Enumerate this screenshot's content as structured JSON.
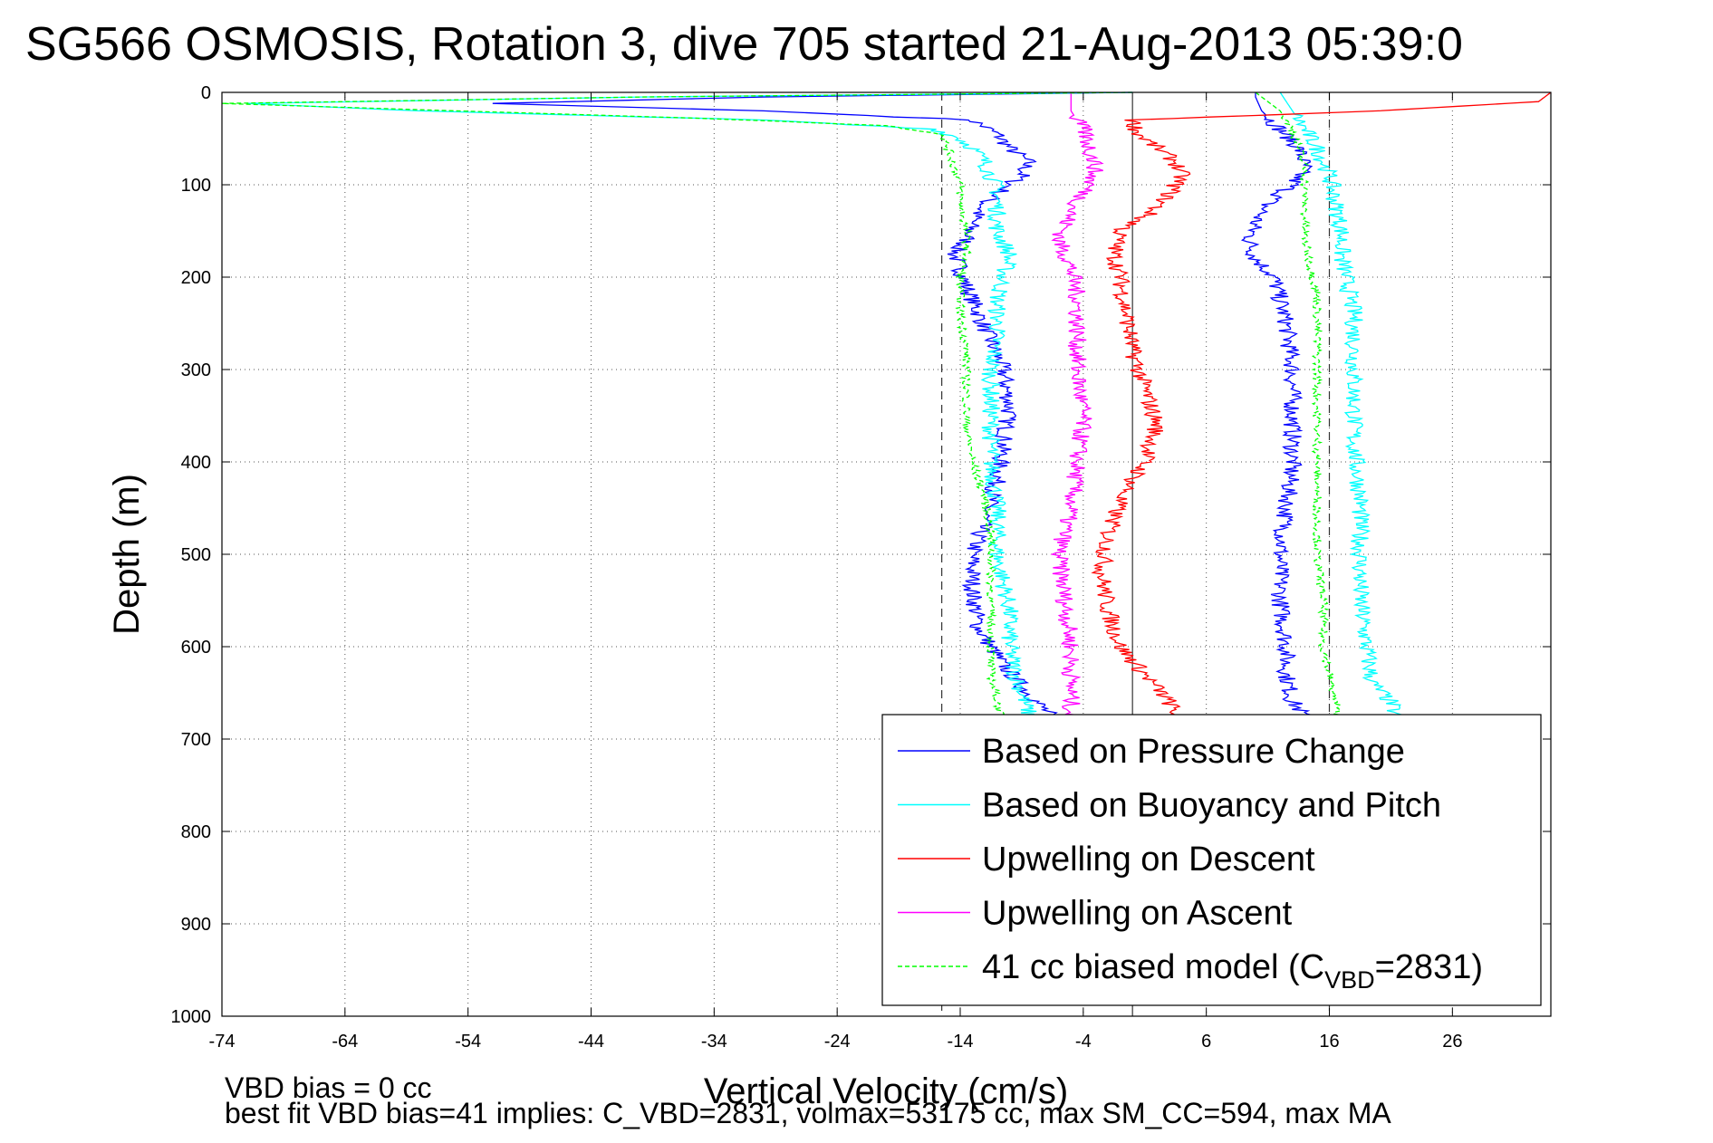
{
  "chart_data": {
    "type": "line",
    "title": "SG566 OSMOSIS, Rotation 3, dive 705 started 21-Aug-2013 05:39:0",
    "xlabel": "Vertical Velocity (cm/s)",
    "ylabel": "Depth (m)",
    "xlim": [
      -74,
      34
    ],
    "ylim": [
      0,
      1000
    ],
    "y_reversed": true,
    "grid": true,
    "xticks": [
      -74,
      -64,
      -54,
      -44,
      -34,
      -24,
      -14,
      -4,
      6,
      16,
      26
    ],
    "yticks": [
      0,
      100,
      200,
      300,
      400,
      500,
      600,
      700,
      800,
      900,
      1000
    ],
    "reference_lines": [
      {
        "x": -15.5,
        "style": "dashed"
      },
      {
        "x": 0,
        "style": "solid"
      },
      {
        "x": 16,
        "style": "dashed"
      }
    ],
    "legend_position": "bottom-right",
    "series": [
      {
        "name": "Based on Pressure Change",
        "color": "#0000ff",
        "segments": [
          {
            "depth": [
              0,
              5,
              12,
              20,
              30,
              45,
              60,
              75,
              90,
              105,
              120,
              140,
              160,
              175,
              190,
              210,
              240,
              270,
              300,
              340,
              380,
              420,
              460,
              500,
              540,
              580,
              620,
              650,
              670,
              690,
              698
            ],
            "x": [
              0,
              -30,
              -52,
              -30,
              -13,
              -11,
              -10,
              -8.5,
              -9,
              -10.5,
              -12,
              -13,
              -13.5,
              -14.5,
              -14,
              -13.5,
              -12.5,
              -11.5,
              -10.5,
              -10,
              -10.5,
              -11,
              -12,
              -13,
              -13,
              -12.5,
              -10.5,
              -8.5,
              -7,
              -5.5,
              -5
            ]
          },
          {
            "depth": [
              0,
              5,
              20,
              40,
              60,
              80,
              100,
              120,
              140,
              160,
              180,
              200,
              250,
              300,
              350,
              400,
              450,
              500,
              550,
              600,
              630,
              660,
              690,
              698
            ],
            "x": [
              10,
              10,
              10.5,
              12,
              13.5,
              14,
              13,
              11,
              10,
              9.5,
              10,
              11.5,
              12.5,
              13,
              13,
              13,
              12.5,
              12,
              12,
              12.5,
              12.5,
              13,
              15,
              16
            ]
          }
        ]
      },
      {
        "name": "Based on Buoyancy and Pitch",
        "color": "#00ffff",
        "segments": [
          {
            "depth": [
              0,
              5,
              12,
              20,
              30,
              40,
              50,
              60,
              75,
              90,
              105,
              120,
              150,
              175,
              200,
              225,
              260,
              300,
              350,
              400,
              450,
              500,
              530,
              560,
              600,
              630,
              650,
              670,
              690,
              698
            ],
            "x": [
              0,
              -40,
              -72,
              -58,
              -30,
              -16,
              -14,
              -13,
              -12,
              -11.5,
              -11,
              -11,
              -11,
              -10,
              -10.5,
              -11,
              -11,
              -11.5,
              -11.5,
              -11.5,
              -11,
              -11,
              -10.5,
              -10,
              -10,
              -9.5,
              -9,
              -8.5,
              -8,
              -7.5
            ]
          },
          {
            "depth": [
              0,
              10,
              30,
              60,
              90,
              120,
              150,
              180,
              210,
              240,
              280,
              320,
              380,
              440,
              500,
              550,
              600,
              640,
              660,
              680,
              698
            ],
            "x": [
              12,
              12.5,
              13.5,
              15,
              16,
              16.5,
              17,
              17,
              17.5,
              18,
              18,
              18,
              18,
              18.5,
              18.5,
              18.5,
              19,
              19.5,
              21,
              21.5,
              22
            ]
          }
        ]
      },
      {
        "name": "Upwelling on Descent",
        "color": "#ff0000",
        "segments": [
          {
            "depth": [
              0,
              10,
              20,
              30,
              45,
              60,
              75,
              90,
              110,
              130,
              150,
              175,
              200,
              240,
              280,
              320,
              360,
              400,
              440,
              480,
              520,
              560,
              600,
              630,
              660,
              690,
              698
            ],
            "x": [
              34,
              33,
              20,
              0,
              0.5,
              2,
              3.5,
              4,
              3,
              1.5,
              -1,
              -1.5,
              -1,
              -0.5,
              0,
              1,
              2,
              1,
              -1,
              -2,
              -2.5,
              -2,
              -1,
              1,
              3,
              4,
              4
            ]
          }
        ]
      },
      {
        "name": "Upwelling on Ascent",
        "color": "#ff00ff",
        "segments": [
          {
            "depth": [
              0,
              20,
              40,
              60,
              80,
              100,
              130,
              160,
              190,
              220,
              260,
              300,
              350,
              400,
              450,
              500,
              550,
              600,
              630,
              660,
              690,
              698
            ],
            "x": [
              -5,
              -5,
              -4,
              -3.5,
              -3,
              -3.5,
              -5,
              -6,
              -5,
              -4.5,
              -4.5,
              -4.5,
              -4,
              -4.5,
              -5,
              -6,
              -5.5,
              -5,
              -5,
              -5,
              -5,
              -5
            ]
          }
        ]
      },
      {
        "name": "41 cc biased model (C_VBD=2831)",
        "color": "#00ff00",
        "dashed": true,
        "segments": [
          {
            "depth": [
              0,
              5,
              12,
              20,
              28,
              36,
              45,
              60,
              80,
              100,
              120,
              150,
              175,
              200,
              240,
              280,
              320,
              360,
              400,
              440,
              480,
              520,
              560,
              600,
              630,
              660,
              690,
              698
            ],
            "x": [
              0,
              -40,
              -74,
              -55,
              -35,
              -20,
              -15.5,
              -15,
              -14.5,
              -14,
              -14,
              -13.5,
              -13.5,
              -14,
              -14,
              -13.5,
              -13.5,
              -13.5,
              -13,
              -12,
              -11.5,
              -11.5,
              -11.5,
              -11.5,
              -11.5,
              -11,
              -10.5,
              -10
            ]
          },
          {
            "depth": [
              0,
              10,
              20,
              40,
              60,
              80,
              100,
              130,
              160,
              190,
              220,
              260,
              300,
              350,
              400,
              450,
              500,
              550,
              600,
              630,
              660,
              690,
              698
            ],
            "x": [
              10,
              11,
              12,
              13,
              13.5,
              14,
              14,
              14,
              14,
              14.5,
              15,
              15,
              15,
              15,
              15,
              15,
              15,
              15.5,
              15.5,
              16,
              16.5,
              17,
              17
            ]
          }
        ]
      }
    ],
    "legend": [
      {
        "label": "Based on Pressure Change",
        "color": "#0000ff",
        "dashed": false
      },
      {
        "label": "Based on Buoyancy and Pitch",
        "color": "#00ffff",
        "dashed": false
      },
      {
        "label": "Upwelling on Descent",
        "color": "#ff0000",
        "dashed": false
      },
      {
        "label": "Upwelling on Ascent",
        "color": "#ff00ff",
        "dashed": false
      },
      {
        "label_prefix": "41 cc biased model (C",
        "label_sub": "VBD",
        "label_suffix": "=2831)",
        "color": "#00ff00",
        "dashed": true
      }
    ],
    "annotations": [
      "VBD bias = 0 cc",
      "best fit VBD bias=41 implies: C_VBD=2831, volmax=53175 cc, max SM_CC=594, max MA"
    ]
  }
}
